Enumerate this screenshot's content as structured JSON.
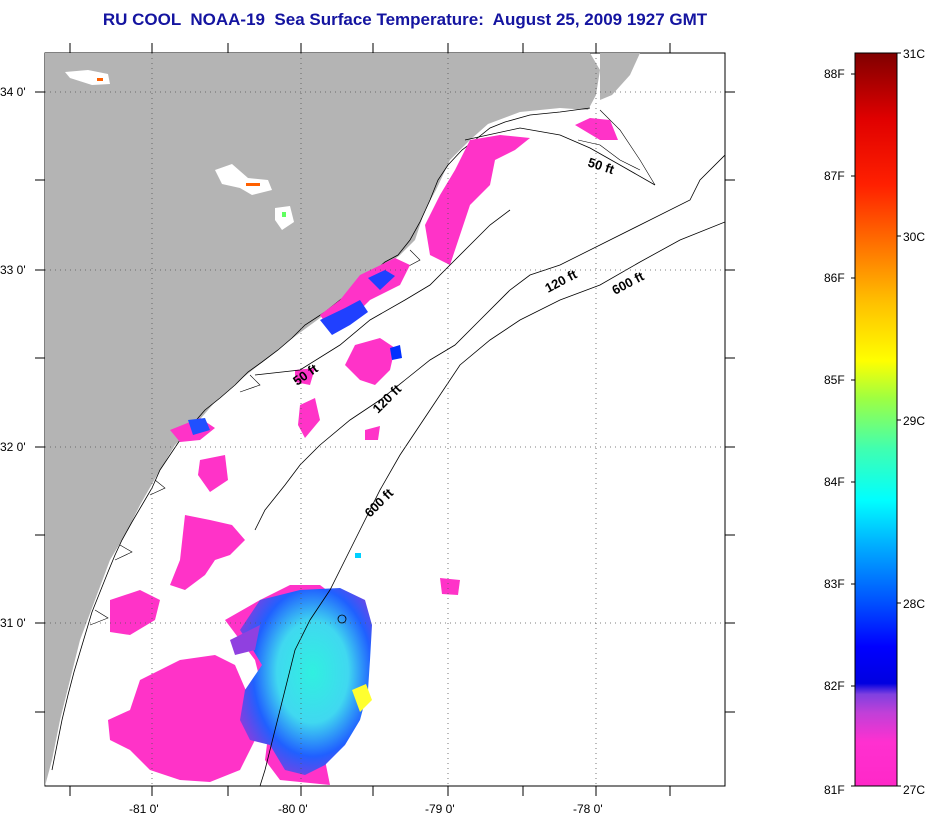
{
  "title": "RU COOL  NOAA-19  Sea Surface Temperature:  August 25, 2009 1927 GMT",
  "axes": {
    "lat_ticks": [
      "34 0'",
      "33 0'",
      "32 0'",
      "31 0'"
    ],
    "lon_ticks": [
      "-81 0'",
      "-80 0'",
      "-79 0'",
      "-78 0'"
    ]
  },
  "isobaths": {
    "labels": [
      "50 ft",
      "120 ft",
      "600 ft",
      "50 ft",
      "120 ft",
      "600 ft"
    ]
  },
  "colorbar": {
    "fahrenheit": [
      "88F",
      "87F",
      "86F",
      "85F",
      "84F",
      "83F",
      "82F",
      "81F"
    ],
    "celsius": [
      "31C",
      "30C",
      "29C",
      "28C",
      "27C"
    ]
  },
  "colors": {
    "title": "#1414a0",
    "land": "#b4b4b4",
    "ocean": "#ffffff",
    "sst_warm_patch": "#ff33c8",
    "coastline": "#000000"
  }
}
